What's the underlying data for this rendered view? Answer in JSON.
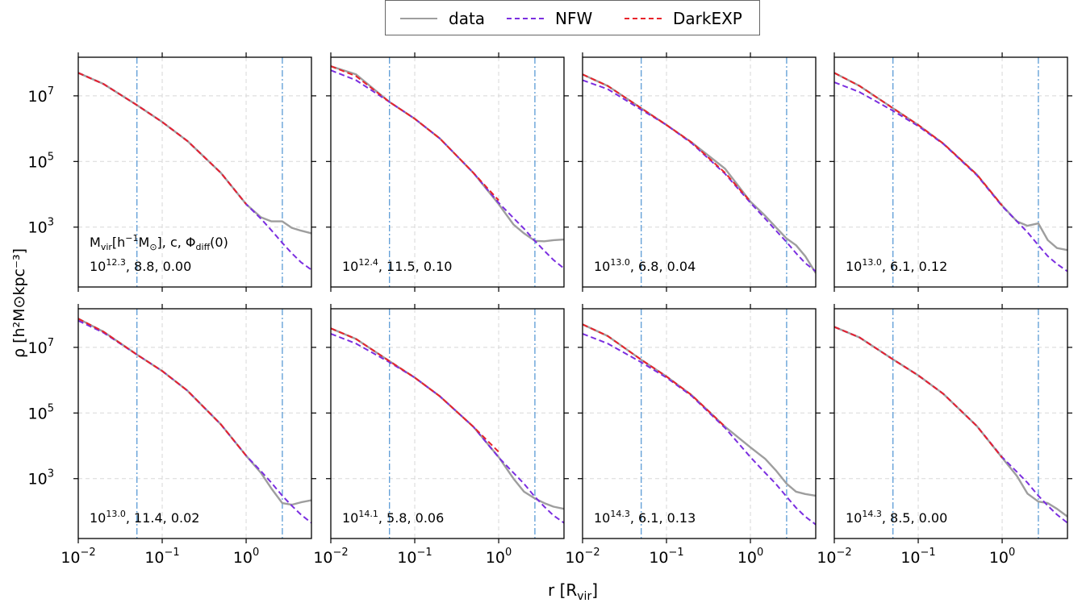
{
  "legend": {
    "data": "data",
    "nfw": "NFW",
    "darkexp": "DarkEXP"
  },
  "colors": {
    "data": "#9e9e9e",
    "nfw": "#7b2ee0",
    "darkexp": "#e8242b",
    "vline": "#5b9bd5",
    "grid": "#d8d8d8"
  },
  "axes": {
    "xlabel_main": "r  [R",
    "xlabel_sub": "vir",
    "xlabel_end": "]",
    "ylabel": "ρ [h²M⊙kpc⁻³]",
    "xticks": [
      {
        "base": "10",
        "exp": "−2"
      },
      {
        "base": "10",
        "exp": "−1"
      },
      {
        "base": "10",
        "exp": "0"
      }
    ],
    "yticks": [
      {
        "base": "10",
        "exp": "7"
      },
      {
        "base": "10",
        "exp": "5"
      },
      {
        "base": "10",
        "exp": "3"
      }
    ]
  },
  "header_label": {
    "m": "M",
    "msub": "vir",
    "rest1": "[h",
    "rest1sup": "−1",
    "rest2": "M",
    "rest2sub": "⊙",
    "rest3": "],  c,  Φ",
    "phisub": "diff",
    "rest4": "(0)"
  },
  "chart_data": {
    "type": "line",
    "xlabel": "r  [R_vir]",
    "ylabel": "ρ [h²M⊙kpc⁻³]",
    "xscale": "log",
    "yscale": "log",
    "xlim": [
      0.01,
      6
    ],
    "ylim": [
      15,
      150000000
    ],
    "grid": true,
    "legend_position": "top-center",
    "vlines": [
      0.05,
      2.7
    ],
    "panels": [
      {
        "label_base": "10",
        "label_exp": "12.3",
        "label_rest": ",  8.8,  0.00",
        "x": [
          0.01,
          0.02,
          0.05,
          0.1,
          0.2,
          0.5,
          1.0,
          1.5,
          2.0,
          2.7,
          3.5,
          4.5,
          6.0
        ],
        "series": [
          {
            "name": "data",
            "values": [
              50000000.0,
              23000000.0,
              5200000.0,
              1600000.0,
              420000.0,
              45000.0,
              5000,
              2000,
              1500,
              1500,
              950,
              780,
              650
            ]
          },
          {
            "name": "NFW",
            "values": [
              50000000.0,
              23000000.0,
              5200000.0,
              1600000.0,
              420000.0,
              45000.0,
              5000,
              1800,
              800,
              330,
              160,
              85,
              50
            ]
          },
          {
            "name": "DarkEXP",
            "values": [
              50000000.0,
              23000000.0,
              5200000.0,
              1600000.0,
              420000.0,
              45000.0,
              5000,
              null,
              null,
              null,
              null,
              null,
              null
            ]
          }
        ]
      },
      {
        "label_base": "10",
        "label_exp": "12.4",
        "label_rest": ",  11.5,  0.10",
        "x": [
          0.01,
          0.02,
          0.05,
          0.1,
          0.2,
          0.5,
          1.0,
          1.5,
          2.0,
          2.7,
          3.5,
          4.5,
          6.0
        ],
        "series": [
          {
            "name": "data",
            "values": [
              80000000.0,
              45000000.0,
              6500000.0,
              2000000.0,
              500000.0,
              45000.0,
              5000,
              1200,
              650,
              380,
              370,
              400,
              420
            ]
          },
          {
            "name": "NFW",
            "values": [
              60000000.0,
              30000000.0,
              6500000.0,
              2000000.0,
              500000.0,
              45000.0,
              5500,
              1900,
              900,
              380,
              190,
              100,
              55
            ]
          },
          {
            "name": "DarkEXP",
            "values": [
              80000000.0,
              40000000.0,
              6500000.0,
              2000000.0,
              500000.0,
              45000.0,
              6500,
              null,
              null,
              null,
              null,
              null,
              null
            ]
          }
        ]
      },
      {
        "label_base": "10",
        "label_exp": "13.0",
        "label_rest": ",  6.8,  0.04",
        "x": [
          0.01,
          0.02,
          0.05,
          0.1,
          0.2,
          0.5,
          1.0,
          1.5,
          2.0,
          2.7,
          3.5,
          4.5,
          6.0
        ],
        "series": [
          {
            "name": "data",
            "values": [
              45000000.0,
              20000000.0,
              4200000.0,
              1300000.0,
              380000.0,
              60000.0,
              6000,
              2200,
              1000,
              450,
              280,
              130,
              40
            ]
          },
          {
            "name": "NFW",
            "values": [
              30000000.0,
              16000000.0,
              3800000.0,
              1300000.0,
              360000.0,
              42000.0,
              5500,
              1800,
              800,
              350,
              160,
              80,
              45
            ]
          },
          {
            "name": "DarkEXP",
            "values": [
              45000000.0,
              20000000.0,
              4200000.0,
              1300000.0,
              380000.0,
              45000.0,
              6000,
              null,
              null,
              null,
              null,
              null,
              null
            ]
          }
        ]
      },
      {
        "label_base": "10",
        "label_exp": "13.0",
        "label_rest": ",  6.1,  0.12",
        "x": [
          0.01,
          0.02,
          0.05,
          0.1,
          0.2,
          0.5,
          1.0,
          1.5,
          2.0,
          2.7,
          3.5,
          4.5,
          6.0
        ],
        "series": [
          {
            "name": "data",
            "values": [
              50000000.0,
              20000000.0,
              4200000.0,
              1300000.0,
              350000.0,
              40000.0,
              4500,
              1500,
              1100,
              1300,
              400,
              230,
              200
            ]
          },
          {
            "name": "NFW",
            "values": [
              26000000.0,
              13000000.0,
              3500000.0,
              1200000.0,
              340000.0,
              38000.0,
              4300,
              1500,
              700,
              280,
              130,
              75,
              45
            ]
          },
          {
            "name": "DarkEXP",
            "values": [
              50000000.0,
              20000000.0,
              4200000.0,
              1300000.0,
              350000.0,
              40000.0,
              4500,
              null,
              null,
              null,
              null,
              null,
              null
            ]
          }
        ]
      },
      {
        "label_base": "10",
        "label_exp": "13.0",
        "label_rest": ",  11.4,  0.02",
        "x": [
          0.01,
          0.02,
          0.05,
          0.1,
          0.2,
          0.5,
          1.0,
          1.5,
          2.0,
          2.7,
          3.5,
          4.5,
          6.0
        ],
        "series": [
          {
            "name": "data",
            "values": [
              75000000.0,
              30000000.0,
              6000000.0,
              1900000.0,
              480000.0,
              45000.0,
              5000,
              1500,
              500,
              180,
              160,
              190,
              220
            ]
          },
          {
            "name": "NFW",
            "values": [
              65000000.0,
              28000000.0,
              6000000.0,
              1900000.0,
              480000.0,
              45000.0,
              5000,
              1700,
              750,
              300,
              150,
              80,
              45
            ]
          },
          {
            "name": "DarkEXP",
            "values": [
              75000000.0,
              30000000.0,
              6000000.0,
              1900000.0,
              480000.0,
              45000.0,
              5000,
              null,
              null,
              null,
              null,
              null,
              null
            ]
          }
        ]
      },
      {
        "label_base": "10",
        "label_exp": "14.1",
        "label_rest": ",  5.8,  0.06",
        "x": [
          0.01,
          0.02,
          0.05,
          0.1,
          0.2,
          0.5,
          1.0,
          1.5,
          2.0,
          2.7,
          3.5,
          4.5,
          6.0
        ],
        "series": [
          {
            "name": "data",
            "values": [
              38000000.0,
              18000000.0,
              3800000.0,
              1200000.0,
              320000.0,
              38000.0,
              4500,
              1000,
              400,
              250,
              180,
              140,
              120
            ]
          },
          {
            "name": "NFW",
            "values": [
              26000000.0,
              13000000.0,
              3500000.0,
              1200000.0,
              320000.0,
              38000.0,
              4400,
              1500,
              700,
              280,
              140,
              75,
              45
            ]
          },
          {
            "name": "DarkEXP",
            "values": [
              38000000.0,
              18000000.0,
              3800000.0,
              1200000.0,
              320000.0,
              38000.0,
              6500,
              null,
              null,
              null,
              null,
              null,
              null
            ]
          }
        ]
      },
      {
        "label_base": "10",
        "label_exp": "14.3",
        "label_rest": ",  6.1,  0.13",
        "x": [
          0.01,
          0.02,
          0.05,
          0.1,
          0.2,
          0.5,
          1.0,
          1.5,
          2.0,
          2.7,
          3.5,
          4.5,
          6.0
        ],
        "series": [
          {
            "name": "data",
            "values": [
              50000000.0,
              22000000.0,
              4200000.0,
              1300000.0,
              350000.0,
              38000.0,
              9000,
              4000,
              1800,
              700,
              400,
              340,
              300
            ]
          },
          {
            "name": "NFW",
            "values": [
              26000000.0,
              13000000.0,
              3500000.0,
              1200000.0,
              330000.0,
              35000.0,
              4500,
              1500,
              700,
              280,
              130,
              70,
              40
            ]
          },
          {
            "name": "DarkEXP",
            "values": [
              50000000.0,
              22000000.0,
              4200000.0,
              1300000.0,
              350000.0,
              38000.0,
              null,
              null,
              null,
              null,
              null,
              null,
              null
            ]
          }
        ]
      },
      {
        "label_base": "10",
        "label_exp": "14.3",
        "label_rest": ",  8.5,  0.00",
        "x": [
          0.01,
          0.02,
          0.05,
          0.1,
          0.2,
          0.5,
          1.0,
          1.5,
          2.0,
          2.7,
          3.5,
          4.5,
          6.0
        ],
        "series": [
          {
            "name": "data",
            "values": [
              42000000.0,
              20000000.0,
              4300000.0,
              1400000.0,
              380000.0,
              40000.0,
              4300,
              1200,
              350,
              200,
              180,
              120,
              70
            ]
          },
          {
            "name": "NFW",
            "values": [
              42000000.0,
              20000000.0,
              4300000.0,
              1400000.0,
              380000.0,
              40000.0,
              4500,
              1600,
              750,
              300,
              150,
              80,
              45
            ]
          },
          {
            "name": "DarkEXP",
            "values": [
              42000000.0,
              20000000.0,
              4300000.0,
              1400000.0,
              380000.0,
              40000.0,
              4300,
              null,
              null,
              null,
              null,
              null,
              null
            ]
          }
        ]
      }
    ]
  }
}
